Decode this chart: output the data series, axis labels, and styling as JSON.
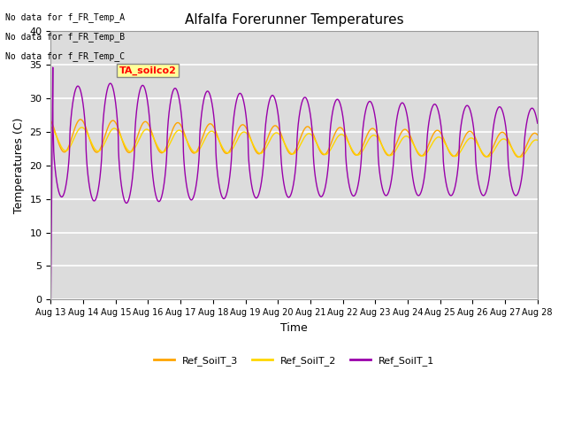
{
  "title": "Alfalfa Forerunner Temperatures",
  "xlabel": "Time",
  "ylabel": "Temperatures (C)",
  "ylim": [
    0,
    40
  ],
  "plot_bg_color": "#dcdcdc",
  "text_annotations": [
    "No data for f_FR_Temp_A",
    "No data for f_FR_Temp_B",
    "No data for f_FR_Temp_C"
  ],
  "ta_label": "TA_soilco2",
  "legend_entries": [
    "Ref_SoilT_3",
    "Ref_SoilT_2",
    "Ref_SoilT_1"
  ],
  "colors": {
    "Ref_SoilT_3": "#FFA500",
    "Ref_SoilT_2": "#FFD700",
    "Ref_SoilT_1": "#9900AA"
  },
  "xtick_labels": [
    "Aug 13",
    "Aug 14",
    "Aug 15",
    "Aug 16",
    "Aug 17",
    "Aug 18",
    "Aug 19",
    "Aug 20",
    "Aug 21",
    "Aug 22",
    "Aug 23",
    "Aug 24",
    "Aug 25",
    "Aug 26",
    "Aug 27",
    "Aug 28"
  ],
  "ytick_values": [
    0,
    5,
    10,
    15,
    20,
    25,
    30,
    35,
    40
  ]
}
